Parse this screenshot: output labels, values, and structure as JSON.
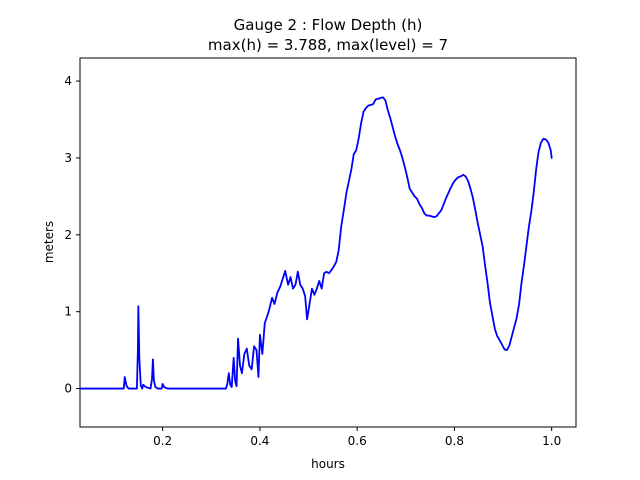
{
  "chart_data": {
    "type": "line",
    "title_line1": "Gauge 2 : Flow Depth (h)",
    "title_line2": "max(h) =   3.788,    max(level) = 7",
    "xlabel": "hours",
    "ylabel": "meters",
    "xlim": [
      0.03,
      1.05
    ],
    "ylim": [
      -0.5,
      4.3
    ],
    "xticks": [
      {
        "value": 0.2,
        "label": "0.2"
      },
      {
        "value": 0.4,
        "label": "0.4"
      },
      {
        "value": 0.6,
        "label": "0.6"
      },
      {
        "value": 0.8,
        "label": "0.8"
      },
      {
        "value": 1.0,
        "label": "1.0"
      }
    ],
    "yticks": [
      {
        "value": 0,
        "label": "0"
      },
      {
        "value": 1,
        "label": "1"
      },
      {
        "value": 2,
        "label": "2"
      },
      {
        "value": 3,
        "label": "3"
      },
      {
        "value": 4,
        "label": "4"
      }
    ],
    "grid": false,
    "line_color": "#0000ff",
    "series": [
      {
        "points": [
          [
            0.03,
            0.0
          ],
          [
            0.12,
            0.0
          ],
          [
            0.122,
            0.15
          ],
          [
            0.126,
            0.03
          ],
          [
            0.13,
            0.0
          ],
          [
            0.147,
            0.0
          ],
          [
            0.149,
            0.5
          ],
          [
            0.15,
            1.07
          ],
          [
            0.152,
            0.4
          ],
          [
            0.155,
            0.04
          ],
          [
            0.158,
            0.0
          ],
          [
            0.16,
            0.05
          ],
          [
            0.165,
            0.02
          ],
          [
            0.175,
            0.0
          ],
          [
            0.178,
            0.12
          ],
          [
            0.18,
            0.38
          ],
          [
            0.182,
            0.1
          ],
          [
            0.185,
            0.02
          ],
          [
            0.19,
            0.0
          ],
          [
            0.198,
            0.0
          ],
          [
            0.2,
            0.06
          ],
          [
            0.203,
            0.02
          ],
          [
            0.21,
            0.0
          ],
          [
            0.33,
            0.0
          ],
          [
            0.333,
            0.06
          ],
          [
            0.336,
            0.2
          ],
          [
            0.339,
            0.05
          ],
          [
            0.342,
            0.02
          ],
          [
            0.346,
            0.4
          ],
          [
            0.349,
            0.1
          ],
          [
            0.352,
            0.03
          ],
          [
            0.355,
            0.65
          ],
          [
            0.359,
            0.3
          ],
          [
            0.363,
            0.2
          ],
          [
            0.368,
            0.45
          ],
          [
            0.373,
            0.52
          ],
          [
            0.378,
            0.3
          ],
          [
            0.383,
            0.25
          ],
          [
            0.388,
            0.55
          ],
          [
            0.393,
            0.5
          ],
          [
            0.397,
            0.15
          ],
          [
            0.4,
            0.7
          ],
          [
            0.405,
            0.45
          ],
          [
            0.41,
            0.85
          ],
          [
            0.418,
            1.0
          ],
          [
            0.425,
            1.18
          ],
          [
            0.43,
            1.1
          ],
          [
            0.436,
            1.25
          ],
          [
            0.442,
            1.33
          ],
          [
            0.447,
            1.43
          ],
          [
            0.452,
            1.53
          ],
          [
            0.458,
            1.35
          ],
          [
            0.463,
            1.45
          ],
          [
            0.468,
            1.3
          ],
          [
            0.473,
            1.35
          ],
          [
            0.478,
            1.52
          ],
          [
            0.483,
            1.35
          ],
          [
            0.488,
            1.3
          ],
          [
            0.493,
            1.2
          ],
          [
            0.497,
            0.9
          ],
          [
            0.502,
            1.1
          ],
          [
            0.507,
            1.3
          ],
          [
            0.512,
            1.22
          ],
          [
            0.517,
            1.3
          ],
          [
            0.522,
            1.4
          ],
          [
            0.527,
            1.3
          ],
          [
            0.532,
            1.5
          ],
          [
            0.537,
            1.52
          ],
          [
            0.542,
            1.5
          ],
          [
            0.548,
            1.55
          ],
          [
            0.553,
            1.6
          ],
          [
            0.557,
            1.65
          ],
          [
            0.562,
            1.8
          ],
          [
            0.567,
            2.1
          ],
          [
            0.572,
            2.3
          ],
          [
            0.578,
            2.55
          ],
          [
            0.583,
            2.7
          ],
          [
            0.588,
            2.85
          ],
          [
            0.593,
            3.05
          ],
          [
            0.598,
            3.1
          ],
          [
            0.603,
            3.25
          ],
          [
            0.608,
            3.45
          ],
          [
            0.613,
            3.6
          ],
          [
            0.618,
            3.65
          ],
          [
            0.623,
            3.68
          ],
          [
            0.628,
            3.69
          ],
          [
            0.633,
            3.7
          ],
          [
            0.638,
            3.76
          ],
          [
            0.643,
            3.77
          ],
          [
            0.648,
            3.78
          ],
          [
            0.653,
            3.788
          ],
          [
            0.658,
            3.75
          ],
          [
            0.663,
            3.62
          ],
          [
            0.668,
            3.52
          ],
          [
            0.673,
            3.4
          ],
          [
            0.678,
            3.28
          ],
          [
            0.683,
            3.18
          ],
          [
            0.688,
            3.1
          ],
          [
            0.693,
            3.0
          ],
          [
            0.698,
            2.88
          ],
          [
            0.703,
            2.75
          ],
          [
            0.708,
            2.6
          ],
          [
            0.713,
            2.55
          ],
          [
            0.718,
            2.5
          ],
          [
            0.723,
            2.47
          ],
          [
            0.728,
            2.4
          ],
          [
            0.733,
            2.35
          ],
          [
            0.738,
            2.28
          ],
          [
            0.743,
            2.25
          ],
          [
            0.748,
            2.25
          ],
          [
            0.753,
            2.24
          ],
          [
            0.758,
            2.23
          ],
          [
            0.763,
            2.24
          ],
          [
            0.768,
            2.28
          ],
          [
            0.773,
            2.32
          ],
          [
            0.778,
            2.4
          ],
          [
            0.783,
            2.48
          ],
          [
            0.788,
            2.55
          ],
          [
            0.793,
            2.62
          ],
          [
            0.798,
            2.68
          ],
          [
            0.803,
            2.72
          ],
          [
            0.808,
            2.75
          ],
          [
            0.813,
            2.76
          ],
          [
            0.818,
            2.78
          ],
          [
            0.823,
            2.76
          ],
          [
            0.828,
            2.7
          ],
          [
            0.833,
            2.6
          ],
          [
            0.838,
            2.48
          ],
          [
            0.843,
            2.32
          ],
          [
            0.848,
            2.15
          ],
          [
            0.853,
            2.0
          ],
          [
            0.858,
            1.85
          ],
          [
            0.863,
            1.6
          ],
          [
            0.868,
            1.38
          ],
          [
            0.873,
            1.12
          ],
          [
            0.878,
            0.95
          ],
          [
            0.883,
            0.78
          ],
          [
            0.888,
            0.68
          ],
          [
            0.893,
            0.63
          ],
          [
            0.898,
            0.57
          ],
          [
            0.903,
            0.51
          ],
          [
            0.908,
            0.5
          ],
          [
            0.913,
            0.56
          ],
          [
            0.918,
            0.68
          ],
          [
            0.923,
            0.8
          ],
          [
            0.928,
            0.92
          ],
          [
            0.933,
            1.1
          ],
          [
            0.938,
            1.38
          ],
          [
            0.943,
            1.6
          ],
          [
            0.948,
            1.85
          ],
          [
            0.953,
            2.1
          ],
          [
            0.958,
            2.3
          ],
          [
            0.963,
            2.55
          ],
          [
            0.968,
            2.85
          ],
          [
            0.973,
            3.08
          ],
          [
            0.978,
            3.2
          ],
          [
            0.983,
            3.25
          ],
          [
            0.988,
            3.24
          ],
          [
            0.993,
            3.2
          ],
          [
            0.998,
            3.1
          ],
          [
            1.0,
            3.0
          ]
        ]
      }
    ]
  }
}
